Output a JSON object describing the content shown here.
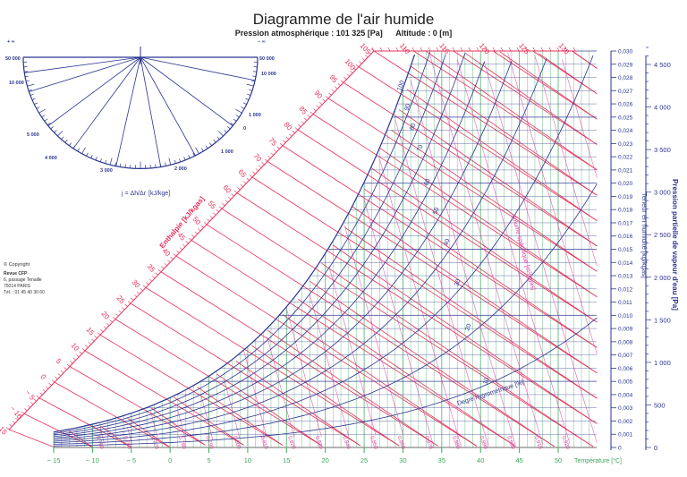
{
  "header": {
    "title": "Diagramme de l'air humide",
    "pressure": "Pression atmosphérique : 101 325 [Pa]",
    "altitude": "Altitude : 0 [m]"
  },
  "copyright": {
    "label": "© Copyright",
    "org": "Revue CFP",
    "address1": "6, passage Tenaille",
    "address2": "75014 PARIS",
    "phone": "Tél. : 01 45 40 30 60"
  },
  "protractor": {
    "formula": "j = Δh/Δr",
    "unit": "[kJ/kge]",
    "left_labels": [
      "+ ∞",
      "50 000",
      "10 000",
      "5 000",
      "4 000",
      "3 000"
    ],
    "right_labels": [
      "− ∞",
      "50 000",
      "10 000",
      "1 000",
      "0",
      "1 000",
      "2 000"
    ]
  },
  "colors": {
    "enthalpy": "#e8305a",
    "humidity": "#2b3590",
    "temperature": "#3aa85a",
    "volume": "#e040a0",
    "axis": "#2b3590"
  },
  "chart_data": {
    "type": "line",
    "title": "Diagramme de l'air humide",
    "subtitle": "Pression atmosphérique : 101 325 [Pa]  Altitude : 0 [m]",
    "xlabel": "Température [°C]",
    "ylabel": "Teneur en humidité [kg/kgas]",
    "y2label": "Pression partielle de vapeur d'eau [Pa]",
    "x_ticks": [
      -15,
      -10,
      -5,
      0,
      5,
      10,
      15,
      20,
      25,
      30,
      35,
      40,
      45,
      50
    ],
    "xlim": [
      -15,
      55
    ],
    "y_ticks": [
      "0",
      "0,001",
      "0,002",
      "0,003",
      "0,004",
      "0,005",
      "0,006",
      "0,007",
      "0,008",
      "0,009",
      "0,010",
      "0,011",
      "0,012",
      "0,013",
      "0,014",
      "0,015",
      "0,016",
      "0,017",
      "0,018",
      "0,019",
      "0,020",
      "0,021",
      "0,022",
      "0,023",
      "0,024",
      "0,025",
      "0,026",
      "0,027",
      "0,028",
      "0,029",
      "0,030"
    ],
    "ylim": [
      0,
      0.03
    ],
    "y2_ticks": [
      "0",
      "500",
      "1 000",
      "1 500",
      "2 000",
      "2 500",
      "3 000",
      "3 500",
      "4 000",
      "4 500"
    ],
    "y2lim": [
      0,
      4800
    ],
    "enthalpy_label": "Enthalpie [kJ/kgas]",
    "enthalpy_ticks": [
      -15,
      -10,
      -5,
      0,
      5,
      10,
      15,
      20,
      25,
      30,
      35,
      40,
      45,
      50,
      55,
      60,
      65,
      70,
      75,
      80,
      85,
      90,
      95,
      100,
      105,
      110,
      115,
      120,
      125,
      130
    ],
    "relative_humidity_label": "Degré hygrométrique [%]",
    "relative_humidity_curves": [
      10,
      20,
      30,
      40,
      50,
      60,
      70,
      80,
      90,
      100
    ],
    "specific_volume_label": "Volume spécifique [m³/kgas]",
    "specific_volume_ticks": [
      0.75,
      0.76,
      0.77,
      0.78,
      0.79,
      0.8,
      0.81,
      0.82,
      0.83,
      0.84,
      0.85,
      0.86,
      0.87,
      0.88,
      0.89,
      0.9,
      0.91,
      0.92,
      0.93,
      0.94,
      0.95,
      0.96,
      0.97
    ],
    "grid": true
  }
}
